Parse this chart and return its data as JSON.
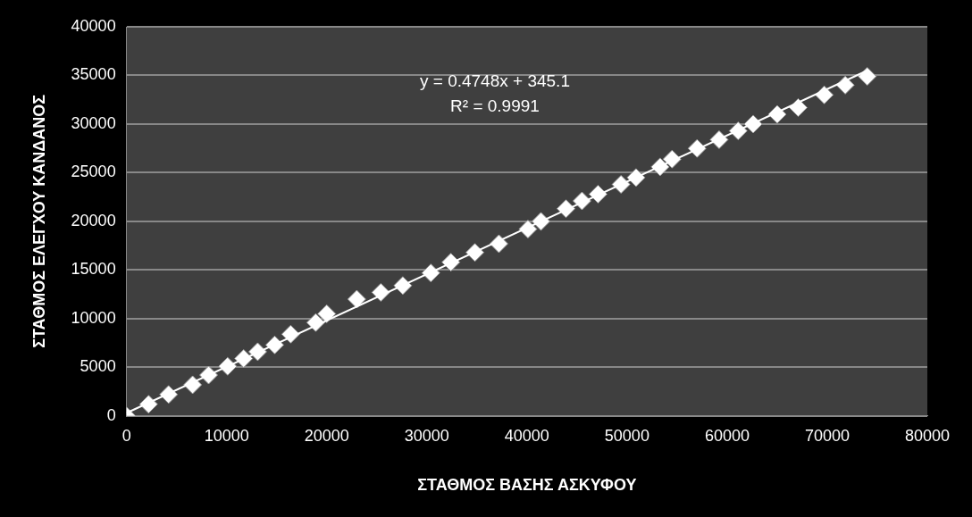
{
  "chart_data": {
    "type": "scatter",
    "xlabel": "ΣΤΑΘΜΟΣ ΒΑΣΗΣ ΑΣΚΥΦΟΥ",
    "ylabel": "ΣΤΑΘΜΟΣ ΕΛΕΓΧΟΥ ΚΑΝΔΑΝΟΣ",
    "xlim": [
      0,
      80000
    ],
    "xticks": [
      0,
      10000,
      20000,
      30000,
      40000,
      50000,
      60000,
      70000,
      80000
    ],
    "ylim": [
      0,
      40000
    ],
    "yticks": [
      0,
      5000,
      10000,
      15000,
      20000,
      25000,
      30000,
      35000,
      40000
    ],
    "grid": "y",
    "legend": false,
    "annotations": [
      "y = 0.4748x + 345.1",
      "R² = 0.9991"
    ],
    "series": [
      {
        "marker": "diamond",
        "color": "#ffffff",
        "x": [
          0,
          2200,
          4200,
          6600,
          8200,
          10100,
          11700,
          13100,
          14800,
          16400,
          18900,
          20000,
          23000,
          25400,
          27600,
          30400,
          32400,
          34800,
          37200,
          40100,
          41400,
          43900,
          45500,
          47100,
          49400,
          50900,
          53300,
          54500,
          57000,
          59200,
          61100,
          62600,
          65000,
          67100,
          69700,
          71800,
          74000
        ],
        "values": [
          0,
          1200,
          2200,
          3200,
          4200,
          5100,
          5900,
          6600,
          7300,
          8400,
          9600,
          10500,
          12000,
          12700,
          13400,
          14700,
          15800,
          16800,
          17700,
          19200,
          20000,
          21300,
          22100,
          22800,
          23800,
          24500,
          25600,
          26400,
          27500,
          28400,
          29300,
          30000,
          31000,
          31700,
          33000,
          34000,
          34900
        ]
      },
      {
        "type": "line",
        "marker": "none",
        "color": "#ffffff",
        "x": [
          0,
          74000
        ],
        "values": [
          300,
          35500
        ]
      }
    ]
  }
}
